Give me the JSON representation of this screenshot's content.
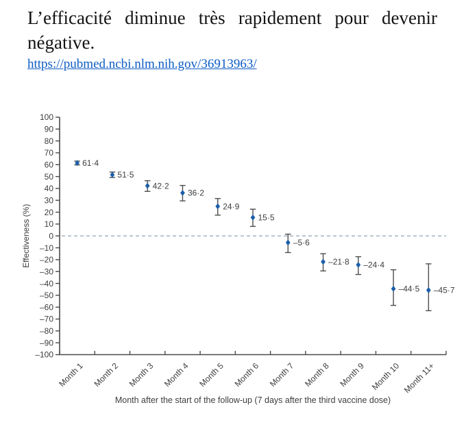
{
  "header": {
    "title": "L’efficacité diminue très rapidement pour devenir négative.",
    "link": "https://pubmed.ncbi.nlm.nih.gov/36913963/"
  },
  "chart_data": {
    "type": "scatter",
    "title": "",
    "xlabel": "Month after the start of the follow-up (7 days after the third vaccine dose)",
    "ylabel": "Effectiveness (%)",
    "ylim": [
      -100,
      100
    ],
    "ytick_step": 10,
    "yticks": [
      "100",
      "90",
      "80",
      "70",
      "60",
      "50",
      "40",
      "30",
      "20",
      "10",
      "0",
      "–10",
      "–20",
      "–30",
      "–40",
      "–50",
      "–60",
      "–70",
      "–80",
      "–90",
      "–100"
    ],
    "zero_line": true,
    "grid": false,
    "legend": false,
    "categories": [
      "Month 1",
      "Month 2",
      "Month 3",
      "Month 4",
      "Month 5",
      "Month 6",
      "Month 7",
      "Month 8",
      "Month 9",
      "Month 10",
      "Month 11+"
    ],
    "points": [
      {
        "category": "Month 1",
        "value": 61.4,
        "label": "61·4",
        "ci_low": 59.8,
        "ci_high": 63.0
      },
      {
        "category": "Month 2",
        "value": 51.5,
        "label": "51·5",
        "ci_low": 49.2,
        "ci_high": 53.8
      },
      {
        "category": "Month 3",
        "value": 42.2,
        "label": "42·2",
        "ci_low": 37.5,
        "ci_high": 46.5
      },
      {
        "category": "Month 4",
        "value": 36.2,
        "label": "36·2",
        "ci_low": 29.5,
        "ci_high": 42.5
      },
      {
        "category": "Month 5",
        "value": 24.9,
        "label": "24·9",
        "ci_low": 17.5,
        "ci_high": 31.5
      },
      {
        "category": "Month 6",
        "value": 15.5,
        "label": "15·5",
        "ci_low": 8.0,
        "ci_high": 22.5
      },
      {
        "category": "Month 7",
        "value": -5.6,
        "label": "–5·6",
        "ci_low": -14.0,
        "ci_high": 1.5
      },
      {
        "category": "Month 8",
        "value": -21.8,
        "label": "–21·8",
        "ci_low": -29.5,
        "ci_high": -15.0
      },
      {
        "category": "Month 9",
        "value": -24.4,
        "label": "–24·4",
        "ci_low": -32.5,
        "ci_high": -17.5
      },
      {
        "category": "Month 10",
        "value": -44.5,
        "label": "–44·5",
        "ci_low": -58.5,
        "ci_high": -28.5
      },
      {
        "category": "Month 11+",
        "value": -45.7,
        "label": "–45·7",
        "ci_low": -63.0,
        "ci_high": -23.5
      }
    ],
    "colors": {
      "marker": "#1c5ea9",
      "error_bar": "#4d4d4d",
      "axis": "#4a4a4a",
      "zero_line": "#93a5b1",
      "text": "#3d3d3d"
    }
  }
}
